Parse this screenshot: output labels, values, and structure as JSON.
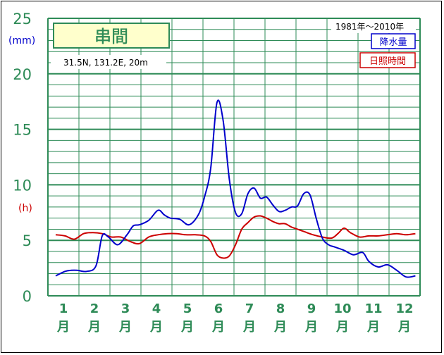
{
  "colors": {
    "grid": "#2e8b57",
    "precip": "#0000cc",
    "sunshine": "#cc0000",
    "title_bg": "#ffffcc"
  },
  "chart_data": {
    "type": "line",
    "title": "串間",
    "location": "31.5N,  131.2E,  20m",
    "period": "1981年～2010年",
    "left_unit": "(mm)",
    "right_unit": "(h)",
    "ylim": [
      0,
      25
    ],
    "y_ticks": [
      "0",
      "5",
      "10",
      "15",
      "20",
      "25"
    ],
    "months": [
      "1",
      "2",
      "3",
      "4",
      "5",
      "6",
      "7",
      "8",
      "9",
      "10",
      "11",
      "12"
    ],
    "month_suffix": "月",
    "series": [
      {
        "name": "降水量",
        "x": [
          1,
          1.3,
          1.5,
          1.7,
          2,
          2.3,
          2.5,
          2.7,
          3,
          3.3,
          3.5,
          3.7,
          4,
          4.3,
          4.5,
          4.7,
          5,
          5.3,
          5.6,
          5.8,
          6,
          6.2,
          6.4,
          6.6,
          6.8,
          7,
          7.2,
          7.4,
          7.6,
          7.8,
          8,
          8.2,
          8.4,
          8.6,
          8.8,
          9,
          9.2,
          9.4,
          9.6,
          9.8,
          10,
          10.3,
          10.6,
          10.9,
          11.1,
          11.4,
          11.7,
          12,
          12.3,
          12.6
        ],
        "values": [
          1.8,
          2.2,
          2.3,
          2.3,
          2.2,
          2.7,
          5.4,
          5.3,
          4.6,
          5.5,
          6.3,
          6.4,
          6.8,
          7.7,
          7.3,
          7.0,
          6.9,
          6.4,
          7.3,
          8.9,
          11.5,
          17.4,
          15.8,
          10.5,
          7.5,
          7.4,
          9.2,
          9.7,
          8.8,
          8.9,
          8.2,
          7.6,
          7.7,
          8.0,
          8.1,
          9.2,
          9.1,
          7.0,
          5.2,
          4.6,
          4.4,
          4.1,
          3.7,
          3.9,
          3.1,
          2.6,
          2.8,
          2.3,
          1.7,
          1.8
        ]
      },
      {
        "name": "日照時間",
        "x": [
          1,
          1.3,
          1.6,
          1.9,
          2.2,
          2.5,
          2.8,
          3.1,
          3.4,
          3.7,
          4,
          4.3,
          4.6,
          4.9,
          5.2,
          5.5,
          5.8,
          6,
          6.2,
          6.4,
          6.6,
          6.8,
          7,
          7.2,
          7.4,
          7.6,
          7.8,
          8,
          8.2,
          8.4,
          8.6,
          8.8,
          9,
          9.3,
          9.6,
          9.9,
          10.1,
          10.3,
          10.5,
          10.8,
          11.1,
          11.4,
          11.7,
          12,
          12.3,
          12.6
        ],
        "values": [
          5.5,
          5.4,
          5.1,
          5.6,
          5.7,
          5.6,
          5.3,
          5.3,
          4.9,
          4.7,
          5.3,
          5.5,
          5.6,
          5.6,
          5.5,
          5.5,
          5.4,
          4.9,
          3.7,
          3.4,
          3.6,
          4.6,
          6.0,
          6.6,
          7.1,
          7.2,
          7.0,
          6.7,
          6.5,
          6.5,
          6.2,
          6.0,
          5.8,
          5.5,
          5.3,
          5.2,
          5.6,
          6.1,
          5.7,
          5.3,
          5.4,
          5.4,
          5.5,
          5.6,
          5.5,
          5.6
        ]
      }
    ]
  }
}
